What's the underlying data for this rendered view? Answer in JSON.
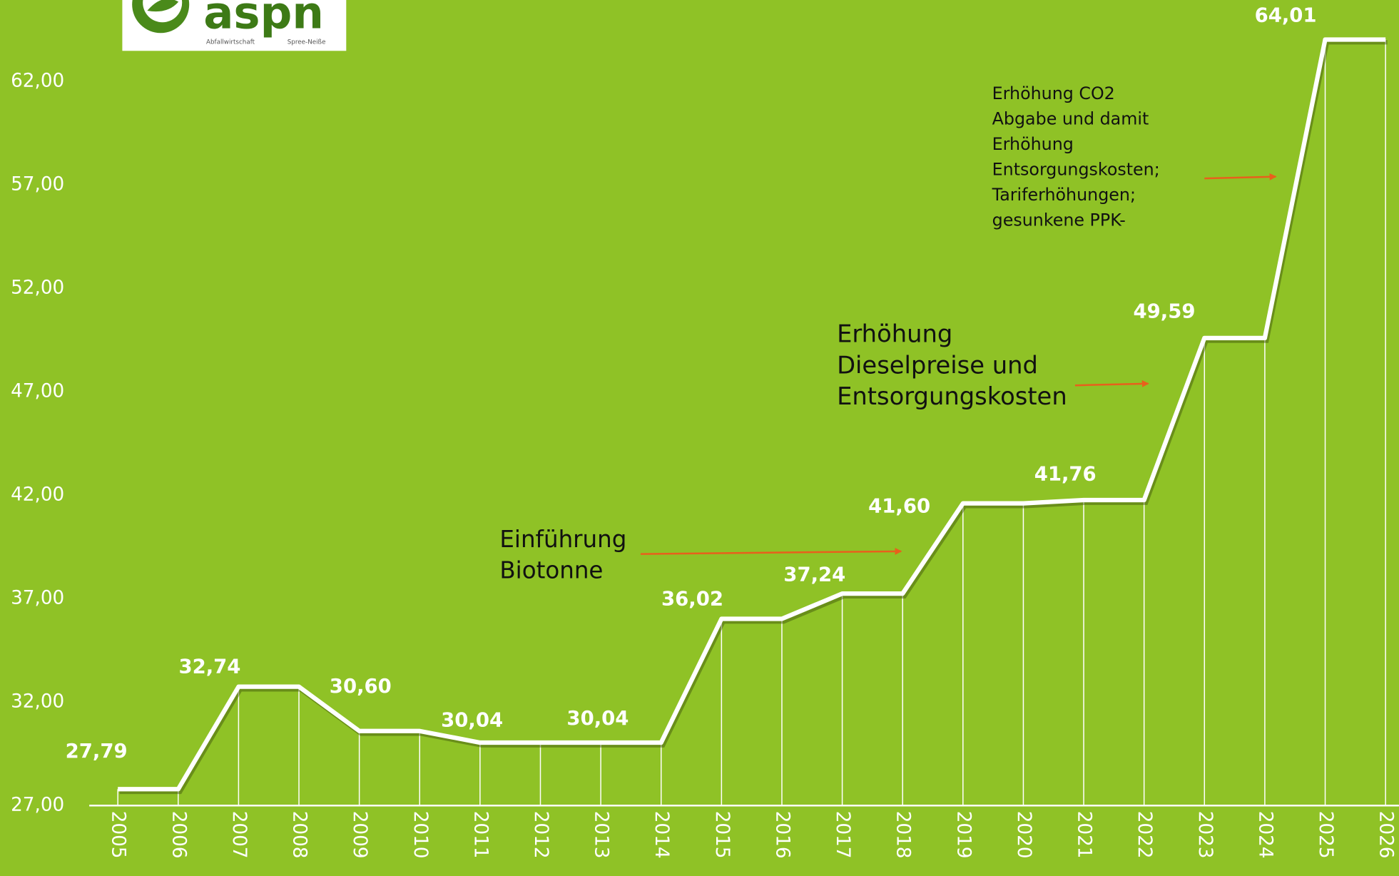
{
  "logo": {
    "name": "aspn",
    "left": "Abfallwirtschaft",
    "right": "Spree-Neiße"
  },
  "chart_data": {
    "type": "line",
    "categories": [
      "2005",
      "2006",
      "2007",
      "2008",
      "2009",
      "2010",
      "2011",
      "2012",
      "2013",
      "2014",
      "2015",
      "2016",
      "2017",
      "2018",
      "2019",
      "2020",
      "2021",
      "2022",
      "2023",
      "2024",
      "2025",
      "2026"
    ],
    "values": [
      27.79,
      27.79,
      32.74,
      32.74,
      30.6,
      30.6,
      30.04,
      30.04,
      30.04,
      30.04,
      36.02,
      36.02,
      37.24,
      37.24,
      41.6,
      41.6,
      41.76,
      41.76,
      49.59,
      49.59,
      64.01,
      64.01
    ],
    "value_labels": [
      "27,79",
      null,
      "32,74",
      null,
      "30,60",
      null,
      "30,04",
      null,
      "30,04",
      null,
      "36,02",
      null,
      "37,24",
      null,
      "41,60",
      null,
      "41,76",
      null,
      "49,59",
      null,
      "64,01",
      null
    ],
    "color": "#ffffff",
    "ylim": [
      27,
      65
    ],
    "yticks": [
      {
        "value": 27,
        "label": "27,00"
      },
      {
        "value": 32,
        "label": "32,00"
      },
      {
        "value": 37,
        "label": "37,00"
      },
      {
        "value": 42,
        "label": "42,00"
      },
      {
        "value": 47,
        "label": "47,00"
      },
      {
        "value": 52,
        "label": "52,00"
      },
      {
        "value": 57,
        "label": "57,00"
      },
      {
        "value": 62,
        "label": "62,00"
      }
    ],
    "annotations": [
      {
        "lines": [
          "Einführung",
          "Biotonne"
        ]
      },
      {
        "lines": [
          "Erhöhung",
          "Dieselpreise und",
          "Entsorgungskosten"
        ]
      },
      {
        "lines": [
          "Erhöhung CO2",
          "Abgabe und damit",
          "Erhöhung",
          "Entsorgungskosten;",
          "Tariferhöhungen;",
          "gesunkene PPK-"
        ]
      }
    ]
  }
}
